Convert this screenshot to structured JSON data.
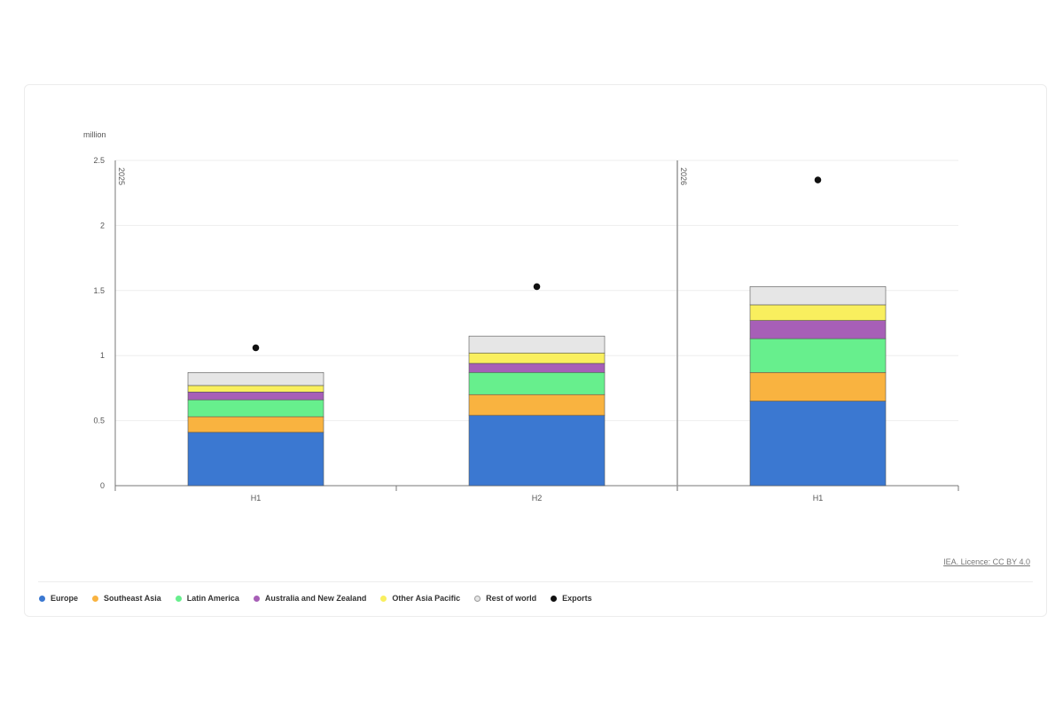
{
  "source_text": "IEA. Licence: CC BY 4.0",
  "colors": {
    "grid": "#eeeeee",
    "axis": "#777777",
    "period_line": "#999999",
    "exports_dot": "#111111"
  },
  "chart_data": {
    "type": "bar",
    "stacked": true,
    "unit_label": "million",
    "ylim": [
      0,
      2.5
    ],
    "y_ticks": [
      0,
      0.5,
      1,
      1.5,
      2,
      2.5
    ],
    "y_tick_labels": [
      "0",
      "0.5",
      "1",
      "1.5",
      "2",
      "2.5"
    ],
    "grid": true,
    "legend_position": "bottom",
    "periods": [
      {
        "label": "2025",
        "categories": [
          "H1",
          "H2"
        ]
      },
      {
        "label": "2026",
        "categories": [
          "H1"
        ]
      }
    ],
    "categories": [
      "H1",
      "H2",
      "H1"
    ],
    "series": [
      {
        "name": "Europe",
        "type": "bar",
        "color": "#3b78d1",
        "values": [
          0.41,
          0.54,
          0.65
        ]
      },
      {
        "name": "Southeast Asia",
        "type": "bar",
        "color": "#f9b340",
        "values": [
          0.12,
          0.16,
          0.22
        ]
      },
      {
        "name": "Latin America",
        "type": "bar",
        "color": "#67ef8d",
        "values": [
          0.13,
          0.17,
          0.26
        ]
      },
      {
        "name": "Australia and New Zealand",
        "type": "bar",
        "color": "#a75fb7",
        "values": [
          0.06,
          0.07,
          0.14
        ]
      },
      {
        "name": "Other Asia Pacific",
        "type": "bar",
        "color": "#f9ef5e",
        "values": [
          0.05,
          0.08,
          0.12
        ]
      },
      {
        "name": "Rest of world",
        "type": "bar",
        "color": "#e6e6e6",
        "values": [
          0.1,
          0.13,
          0.14
        ]
      },
      {
        "name": "Exports",
        "type": "scatter",
        "color": "#111111",
        "values": [
          1.06,
          1.53,
          2.35
        ]
      }
    ]
  }
}
